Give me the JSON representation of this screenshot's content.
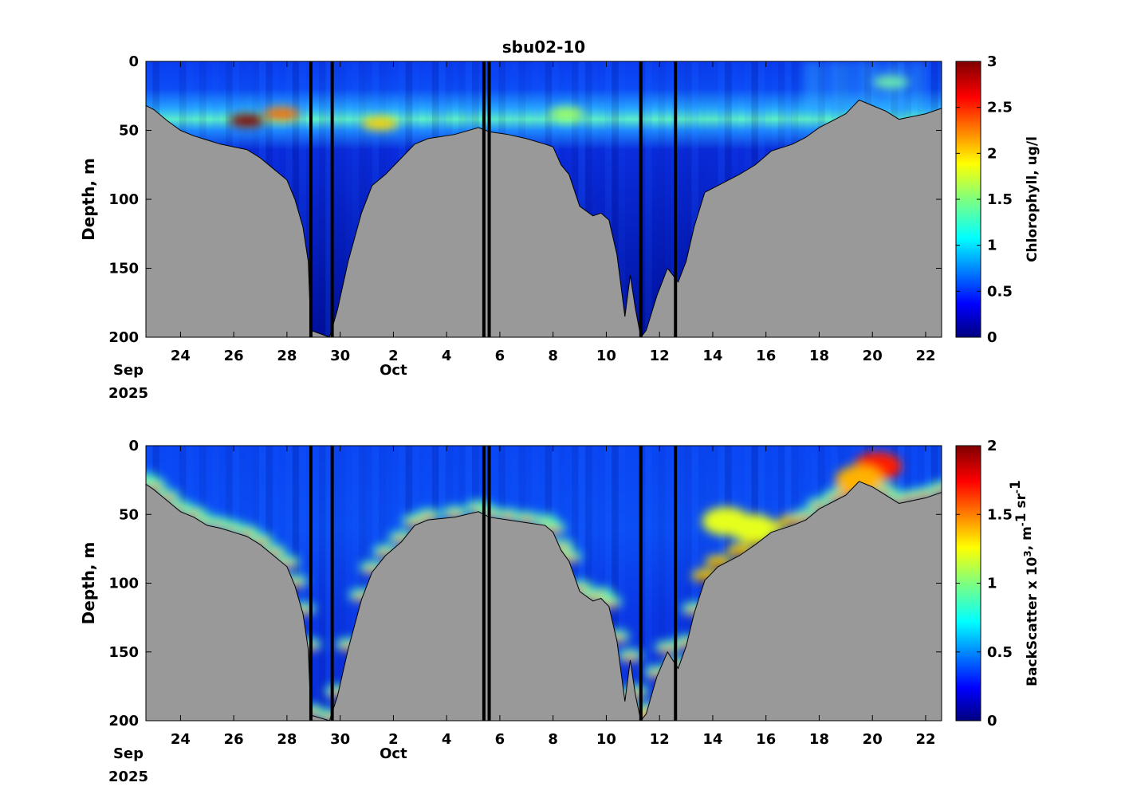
{
  "figure_title": "sbu02-10",
  "chart_data": [
    {
      "type": "heatmap",
      "name": "chlorophyll",
      "ylabel": "Depth, m",
      "ylim": [
        0,
        200
      ],
      "y_ticks": [
        0,
        50,
        100,
        150,
        200
      ],
      "y_reversed": true,
      "x_range_days": [
        22.7,
        52.6
      ],
      "x_ticks": [
        {
          "day": 24,
          "label": "24"
        },
        {
          "day": 26,
          "label": "26"
        },
        {
          "day": 28,
          "label": "28"
        },
        {
          "day": 30,
          "label": "30"
        },
        {
          "day": 32,
          "label": "2"
        },
        {
          "day": 34,
          "label": "4"
        },
        {
          "day": 36,
          "label": "6"
        },
        {
          "day": 38,
          "label": "8"
        },
        {
          "day": 40,
          "label": "10"
        },
        {
          "day": 42,
          "label": "12"
        },
        {
          "day": 44,
          "label": "14"
        },
        {
          "day": 46,
          "label": "16"
        },
        {
          "day": 48,
          "label": "18"
        },
        {
          "day": 50,
          "label": "20"
        },
        {
          "day": 52,
          "label": "22"
        }
      ],
      "month_labels": [
        {
          "day": 22.7,
          "label": "Sep"
        },
        {
          "day": 32,
          "label": "Oct"
        }
      ],
      "year_label": "2025",
      "colorbar": {
        "label": "Chlorophyll, ug/l",
        "range": [
          0,
          3
        ],
        "ticks": [
          {
            "value": 0,
            "label": "0"
          },
          {
            "value": 0.5,
            "label": "0.5"
          },
          {
            "value": 1,
            "label": "1"
          },
          {
            "value": 1.5,
            "label": "1.5"
          },
          {
            "value": 2,
            "label": "2"
          },
          {
            "value": 2.5,
            "label": "2.5"
          },
          {
            "value": 3,
            "label": "3"
          }
        ],
        "colormap": "jet"
      },
      "bottom_depth": [
        [
          22.7,
          32
        ],
        [
          23,
          35
        ],
        [
          23.5,
          43
        ],
        [
          24,
          50
        ],
        [
          24.5,
          54
        ],
        [
          25,
          57
        ],
        [
          25.5,
          60
        ],
        [
          26,
          62
        ],
        [
          26.5,
          64
        ],
        [
          27,
          70
        ],
        [
          27.5,
          78
        ],
        [
          28,
          86
        ],
        [
          28.3,
          100
        ],
        [
          28.6,
          120
        ],
        [
          28.8,
          145
        ],
        [
          28.9,
          195
        ],
        [
          29.6,
          200
        ],
        [
          29.9,
          180
        ],
        [
          30.3,
          145
        ],
        [
          30.8,
          110
        ],
        [
          31.2,
          90
        ],
        [
          31.7,
          82
        ],
        [
          32.3,
          70
        ],
        [
          32.8,
          60
        ],
        [
          33.3,
          56
        ],
        [
          34.3,
          53
        ],
        [
          35.2,
          48
        ],
        [
          35.6,
          51
        ],
        [
          36.3,
          53
        ],
        [
          37,
          56
        ],
        [
          37.7,
          60
        ],
        [
          38,
          62
        ],
        [
          38.3,
          75
        ],
        [
          38.6,
          82
        ],
        [
          39,
          105
        ],
        [
          39.5,
          112
        ],
        [
          39.8,
          110
        ],
        [
          40.1,
          115
        ],
        [
          40.4,
          140
        ],
        [
          40.7,
          185
        ],
        [
          40.9,
          155
        ],
        [
          41.1,
          180
        ],
        [
          41.3,
          200
        ],
        [
          41.5,
          195
        ],
        [
          41.9,
          170
        ],
        [
          42.3,
          150
        ],
        [
          42.7,
          160
        ],
        [
          43,
          145
        ],
        [
          43.3,
          120
        ],
        [
          43.7,
          95
        ],
        [
          44.2,
          90
        ],
        [
          45,
          82
        ],
        [
          45.6,
          75
        ],
        [
          46.2,
          65
        ],
        [
          47,
          60
        ],
        [
          47.5,
          55
        ],
        [
          48,
          48
        ],
        [
          48.6,
          42
        ],
        [
          49,
          38
        ],
        [
          49.5,
          28
        ],
        [
          50,
          32
        ],
        [
          50.5,
          36
        ],
        [
          51,
          42
        ],
        [
          51.5,
          40
        ],
        [
          52,
          38
        ],
        [
          52.6,
          34
        ]
      ],
      "chl_max_layer": {
        "depth_m": 42,
        "thickness_m": 12
      },
      "chl_hotspots": [
        {
          "day": 26.5,
          "depth": 43,
          "value": 3
        },
        {
          "day": 27.8,
          "depth": 38,
          "value": 2.3
        },
        {
          "day": 31.5,
          "depth": 45,
          "value": 2.0
        },
        {
          "day": 38.5,
          "depth": 38,
          "value": 1.6
        },
        {
          "day": 50.7,
          "depth": 15,
          "value": 1.5
        }
      ],
      "gaps": [
        {
          "from": 28.9,
          "to": 29.7
        },
        {
          "from": 35.4,
          "to": 35.6
        },
        {
          "from": 41.3,
          "to": 42.6
        }
      ]
    },
    {
      "type": "heatmap",
      "name": "backscatter",
      "ylabel": "Depth, m",
      "ylim": [
        0,
        200
      ],
      "y_ticks": [
        0,
        50,
        100,
        150,
        200
      ],
      "y_reversed": true,
      "x_range_days": [
        22.7,
        52.6
      ],
      "x_ticks": [
        {
          "day": 24,
          "label": "24"
        },
        {
          "day": 26,
          "label": "26"
        },
        {
          "day": 28,
          "label": "28"
        },
        {
          "day": 30,
          "label": "30"
        },
        {
          "day": 32,
          "label": "2"
        },
        {
          "day": 34,
          "label": "4"
        },
        {
          "day": 36,
          "label": "6"
        },
        {
          "day": 38,
          "label": "8"
        },
        {
          "day": 40,
          "label": "10"
        },
        {
          "day": 42,
          "label": "12"
        },
        {
          "day": 44,
          "label": "14"
        },
        {
          "day": 46,
          "label": "16"
        },
        {
          "day": 48,
          "label": "18"
        },
        {
          "day": 50,
          "label": "20"
        },
        {
          "day": 52,
          "label": "22"
        }
      ],
      "month_labels": [
        {
          "day": 22.7,
          "label": "Sep"
        },
        {
          "day": 32,
          "label": "Oct"
        }
      ],
      "year_label": "2025",
      "colorbar": {
        "label_main": "BackScatter x 10",
        "label_sup": "3",
        "label_tail": ", m",
        "label_tail_sup": "-",
        "label_end": "1 sr",
        "label_end_sup": "-",
        "label_last": "1",
        "range": [
          0,
          2
        ],
        "ticks": [
          {
            "value": 0,
            "label": "0"
          },
          {
            "value": 0.5,
            "label": "0.5"
          },
          {
            "value": 1,
            "label": "1"
          },
          {
            "value": 1.5,
            "label": "1.5"
          },
          {
            "value": 2,
            "label": "2"
          }
        ],
        "colormap": "jet"
      },
      "bottom_depth": [
        [
          22.7,
          28
        ],
        [
          23,
          32
        ],
        [
          23.5,
          40
        ],
        [
          24,
          48
        ],
        [
          24.5,
          52
        ],
        [
          25,
          58
        ],
        [
          25.5,
          60
        ],
        [
          26,
          63
        ],
        [
          26.5,
          66
        ],
        [
          27,
          72
        ],
        [
          27.5,
          80
        ],
        [
          28,
          88
        ],
        [
          28.3,
          102
        ],
        [
          28.6,
          122
        ],
        [
          28.8,
          148
        ],
        [
          28.9,
          196
        ],
        [
          29.6,
          200
        ],
        [
          29.9,
          182
        ],
        [
          30.3,
          148
        ],
        [
          30.8,
          112
        ],
        [
          31.2,
          92
        ],
        [
          31.7,
          80
        ],
        [
          32.3,
          70
        ],
        [
          32.8,
          58
        ],
        [
          33.3,
          54
        ],
        [
          34.3,
          52
        ],
        [
          35.2,
          48
        ],
        [
          35.6,
          52
        ],
        [
          36.3,
          54
        ],
        [
          37,
          56
        ],
        [
          37.7,
          58
        ],
        [
          38,
          63
        ],
        [
          38.3,
          76
        ],
        [
          38.6,
          84
        ],
        [
          39,
          106
        ],
        [
          39.5,
          113
        ],
        [
          39.8,
          111
        ],
        [
          40.1,
          117
        ],
        [
          40.4,
          142
        ],
        [
          40.7,
          186
        ],
        [
          40.9,
          156
        ],
        [
          41.1,
          182
        ],
        [
          41.3,
          200
        ],
        [
          41.5,
          195
        ],
        [
          41.9,
          168
        ],
        [
          42.3,
          150
        ],
        [
          42.7,
          162
        ],
        [
          43,
          146
        ],
        [
          43.3,
          122
        ],
        [
          43.7,
          98
        ],
        [
          44.2,
          88
        ],
        [
          45,
          80
        ],
        [
          45.6,
          72
        ],
        [
          46.2,
          63
        ],
        [
          47,
          58
        ],
        [
          47.5,
          54
        ],
        [
          48,
          46
        ],
        [
          48.6,
          40
        ],
        [
          49,
          36
        ],
        [
          49.5,
          26
        ],
        [
          50,
          30
        ],
        [
          50.5,
          36
        ],
        [
          51,
          42
        ],
        [
          51.5,
          40
        ],
        [
          52,
          38
        ],
        [
          52.6,
          34
        ]
      ],
      "surface_patches": [
        {
          "day": 50.2,
          "depth": 15,
          "value": 1.7
        },
        {
          "day": 49.5,
          "depth": 25,
          "value": 1.4
        },
        {
          "day": 44.5,
          "depth": 55,
          "value": 1.2
        },
        {
          "day": 45.5,
          "depth": 60,
          "value": 1.2
        }
      ],
      "gaps": [
        {
          "from": 28.9,
          "to": 29.7
        },
        {
          "from": 35.4,
          "to": 35.6
        },
        {
          "from": 41.3,
          "to": 42.6
        }
      ]
    }
  ]
}
